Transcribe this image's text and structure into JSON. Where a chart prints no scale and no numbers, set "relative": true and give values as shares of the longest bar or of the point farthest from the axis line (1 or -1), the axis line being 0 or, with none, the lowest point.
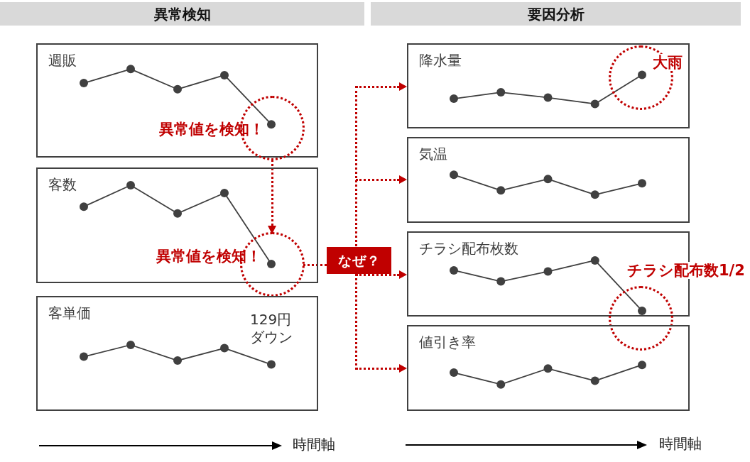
{
  "chart_data": [
    {
      "type": "other",
      "title": "異常検知"
    },
    {
      "type": "line",
      "title": "週販",
      "categories": [
        null,
        null,
        null,
        null,
        null
      ],
      "relative": true,
      "values": [
        0.84,
        1,
        0.77,
        0.93,
        0.37
      ],
      "color": "#404040",
      "marker": "circle",
      "annotations": [
        "異常値を検知！"
      ]
    },
    {
      "type": "line",
      "title": "客数",
      "categories": [
        null,
        null,
        null,
        null,
        null
      ],
      "relative": true,
      "values": [
        0.78,
        1,
        0.71,
        0.92,
        0.19
      ],
      "color": "#404040",
      "marker": "circle",
      "annotations": [
        "異常値を検知！",
        "なぜ？"
      ]
    },
    {
      "type": "line",
      "title": "客単価",
      "categories": [
        null,
        null,
        null,
        null,
        null
      ],
      "relative": true,
      "values": [
        0.82,
        1,
        0.76,
        0.95,
        0.7
      ],
      "color": "#404040",
      "marker": "circle",
      "annotations": [
        "129円ダウン"
      ],
      "xlabel": "時間軸"
    },
    {
      "type": "other",
      "title": "要因分析"
    },
    {
      "type": "line",
      "title": "降水量",
      "categories": [
        null,
        null,
        null,
        null,
        null
      ],
      "relative": true,
      "values": [
        0.55,
        0.67,
        0.57,
        0.45,
        1
      ],
      "color": "#404040",
      "marker": "circle",
      "annotations": [
        "大雨"
      ]
    },
    {
      "type": "line",
      "title": "気温",
      "categories": [
        null,
        null,
        null,
        null,
        null
      ],
      "relative": true,
      "values": [
        1,
        0.67,
        0.91,
        0.58,
        0.82
      ],
      "color": "#404040",
      "marker": "circle"
    },
    {
      "type": "line",
      "title": "チラシ配布枚数",
      "categories": [
        null,
        null,
        null,
        null,
        null
      ],
      "relative": true,
      "values": [
        0.82,
        0.62,
        0.8,
        1,
        0.09
      ],
      "color": "#404040",
      "marker": "circle",
      "annotations": [
        "チラシ配布数1/2"
      ]
    },
    {
      "type": "line",
      "title": "値引き率",
      "categories": [
        null,
        null,
        null,
        null,
        null
      ],
      "relative": true,
      "values": [
        0.83,
        0.57,
        0.92,
        0.65,
        1
      ],
      "color": "#404040",
      "marker": "circle",
      "xlabel": "時間軸"
    }
  ]
}
